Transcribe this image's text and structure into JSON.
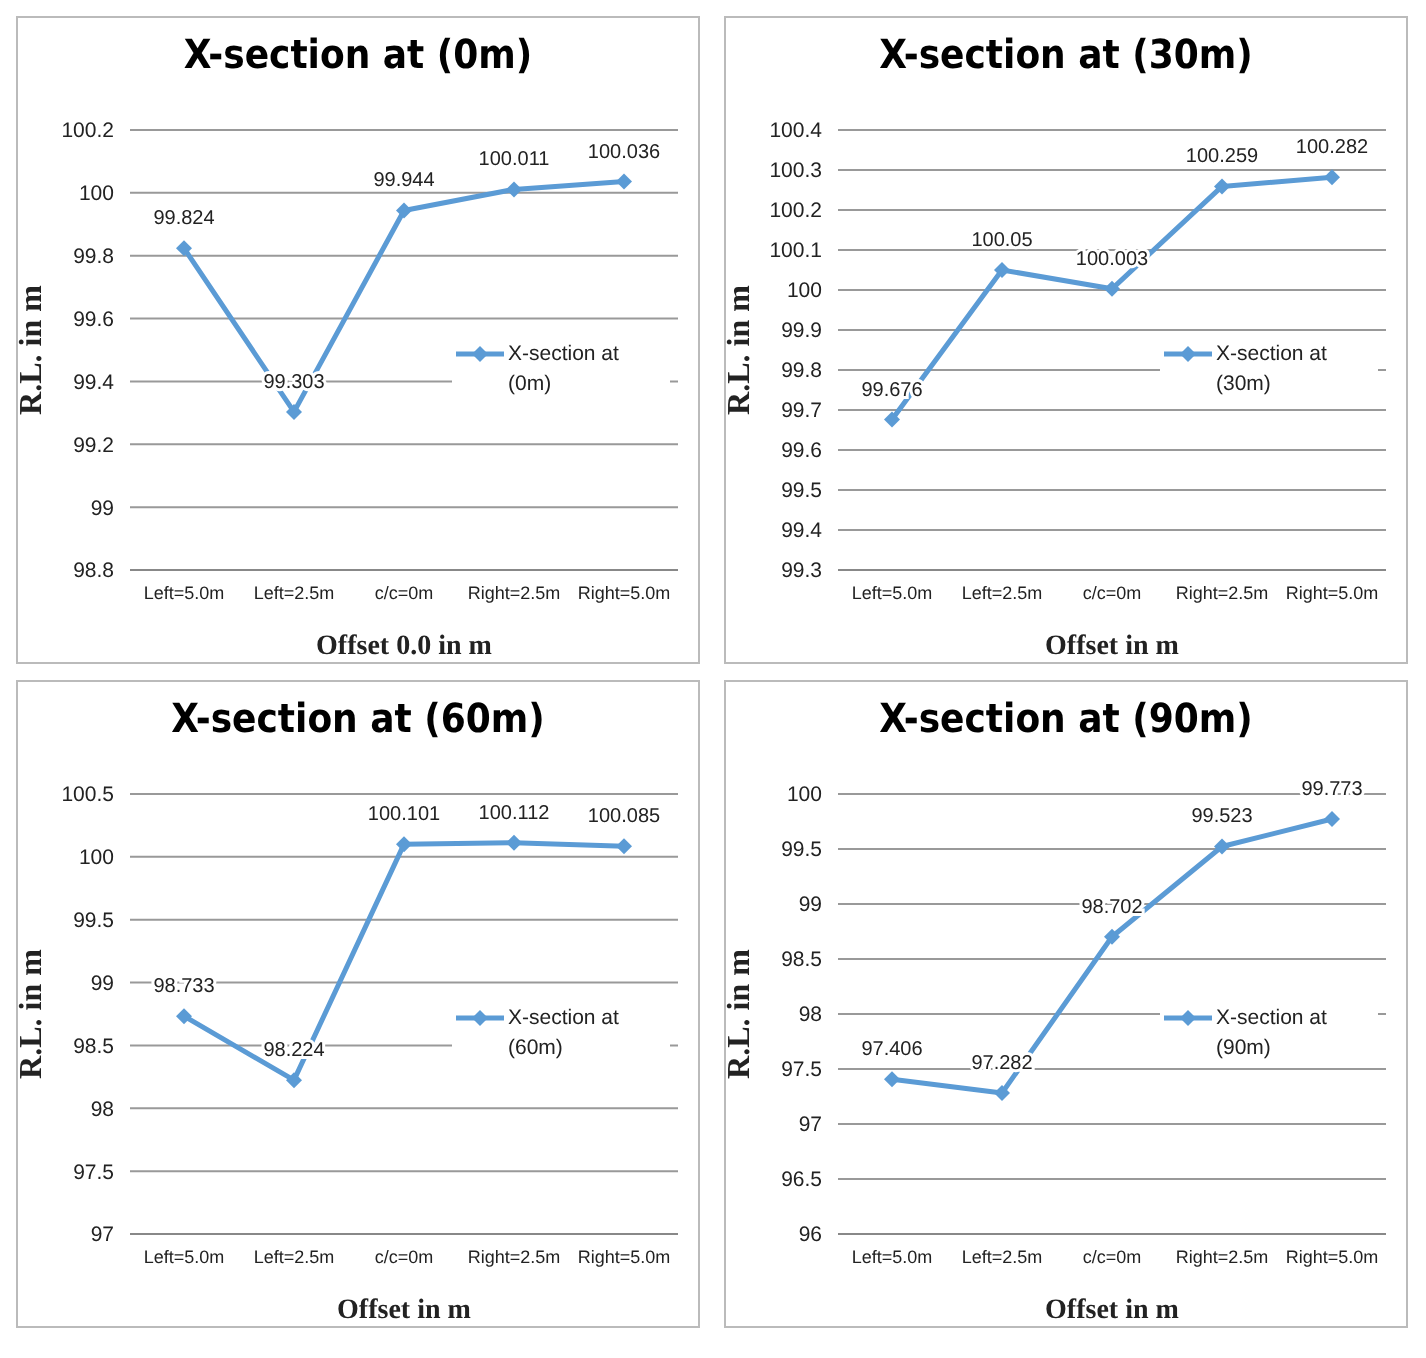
{
  "chart_data": [
    {
      "type": "line",
      "title": "X-section at (0m)",
      "xlabel": "Offset 0.0 in m",
      "ylabel": "R.L. in m",
      "categories": [
        "Left=5.0m",
        "Left=2.5m",
        "c/c=0m",
        "Right=2.5m",
        "Right=5.0m"
      ],
      "series": [
        {
          "name": "X-section at (0m)",
          "color": "#5b9bd5",
          "values": [
            99.824,
            99.303,
            99.944,
            100.011,
            100.036
          ]
        }
      ],
      "ylim": [
        98.8,
        100.2
      ],
      "yticks": [
        98.8,
        99,
        99.2,
        99.4,
        99.6,
        99.8,
        100,
        100.2
      ],
      "grid": "y",
      "legend": "right",
      "marker": "diamond",
      "line_style": "solid",
      "data_labels": true
    },
    {
      "type": "line",
      "title": "X-section at (30m)",
      "xlabel": "Offset in m",
      "ylabel": "R.L. in m",
      "categories": [
        "Left=5.0m",
        "Left=2.5m",
        "c/c=0m",
        "Right=2.5m",
        "Right=5.0m"
      ],
      "series": [
        {
          "name": "X-section at (30m)",
          "color": "#5b9bd5",
          "values": [
            99.676,
            100.05,
            100.003,
            100.259,
            100.282
          ]
        }
      ],
      "ylim": [
        99.3,
        100.4
      ],
      "yticks": [
        99.3,
        99.4,
        99.5,
        99.6,
        99.7,
        99.8,
        99.9,
        100,
        100.1,
        100.2,
        100.3,
        100.4
      ],
      "grid": "y",
      "legend": "right",
      "marker": "diamond",
      "line_style": "solid",
      "data_labels": true
    },
    {
      "type": "line",
      "title": "X-section at (60m)",
      "xlabel": "Offset in m",
      "ylabel": "R.L. in m",
      "categories": [
        "Left=5.0m",
        "Left=2.5m",
        "c/c=0m",
        "Right=2.5m",
        "Right=5.0m"
      ],
      "series": [
        {
          "name": "X-section at (60m)",
          "color": "#5b9bd5",
          "values": [
            98.733,
            98.224,
            100.101,
            100.112,
            100.085
          ]
        }
      ],
      "ylim": [
        97,
        100.5
      ],
      "yticks": [
        97,
        97.5,
        98,
        98.5,
        99,
        99.5,
        100,
        100.5
      ],
      "grid": "y",
      "legend": "right",
      "marker": "diamond",
      "line_style": "solid",
      "data_labels": true
    },
    {
      "type": "line",
      "title": "X-section at (90m)",
      "xlabel": "Offset in m",
      "ylabel": "R.L. in m",
      "categories": [
        "Left=5.0m",
        "Left=2.5m",
        "c/c=0m",
        "Right=2.5m",
        "Right=5.0m"
      ],
      "series": [
        {
          "name": "X-section at (90m)",
          "color": "#5b9bd5",
          "values": [
            97.406,
            97.282,
            98.702,
            99.523,
            99.773
          ]
        }
      ],
      "ylim": [
        96,
        100
      ],
      "yticks": [
        96,
        96.5,
        97,
        97.5,
        98,
        98.5,
        99,
        99.5,
        100
      ],
      "grid": "y",
      "legend": "right",
      "marker": "diamond",
      "line_style": "solid",
      "data_labels": true
    }
  ]
}
